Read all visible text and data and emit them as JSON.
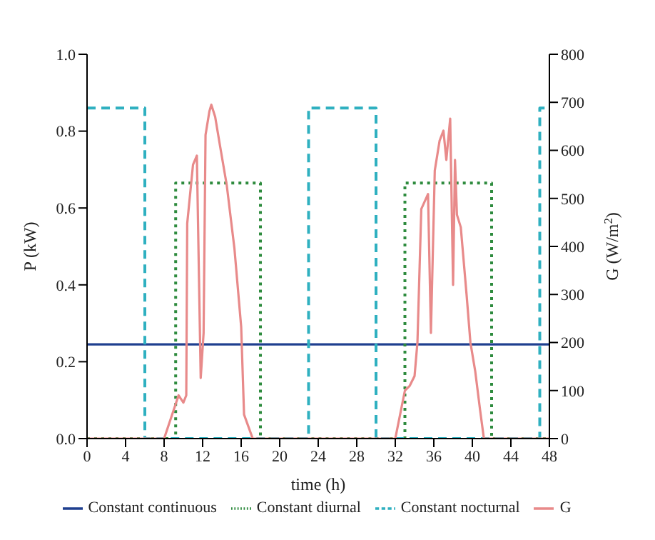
{
  "chart_data": {
    "type": "line",
    "xlabel": "time (h)",
    "ylabel": "P (kW)",
    "y2label": "G (W/m$^{2}$)",
    "xlim": [
      0,
      48
    ],
    "xticks": [
      0,
      4,
      8,
      12,
      16,
      20,
      24,
      28,
      32,
      36,
      40,
      44,
      48
    ],
    "ylim": [
      0,
      1.0
    ],
    "yticks": [
      {
        "value": 0,
        "label": "0.0"
      },
      {
        "value": 0.2,
        "label": "0.2"
      },
      {
        "value": 0.4,
        "label": "0.4"
      },
      {
        "value": 0.6,
        "label": "0.6"
      },
      {
        "value": 0.8,
        "label": "0.8"
      },
      {
        "value": 1.0,
        "label": "1.0"
      }
    ],
    "y2lim": [
      0,
      800
    ],
    "y2ticks": [
      0,
      100,
      200,
      300,
      400,
      500,
      600,
      700,
      800
    ],
    "grid": false,
    "legend": "bottom",
    "marker": "none",
    "series": [
      {
        "name": "Constant continuous",
        "color": "#1f3f8f",
        "line_style": "solid",
        "x": [
          0,
          48
        ],
        "values": [
          0.245,
          0.245
        ]
      },
      {
        "name": "Constant diurnal",
        "color": "#2e8b3e",
        "line_style": "dotted",
        "x": [
          0,
          9.2,
          9.2,
          18,
          18,
          33,
          33,
          42,
          42,
          48
        ],
        "values": [
          0,
          0,
          0.665,
          0.665,
          0,
          0,
          0.665,
          0.665,
          0,
          0
        ]
      },
      {
        "name": "Constant nocturnal",
        "color": "#2fb0c0",
        "line_style": "dashed",
        "x": [
          0,
          6,
          6,
          23,
          23,
          30,
          30,
          47,
          47,
          48
        ],
        "values": [
          0.86,
          0.86,
          0,
          0,
          0.86,
          0.86,
          0,
          0,
          0.86,
          0.86
        ]
      },
      {
        "name": "G",
        "color": "#e88a8a",
        "line_style": "solid",
        "axis": "y2",
        "x": [
          0,
          8,
          9,
          9.5,
          10,
          10.3,
          10.4,
          11,
          11.4,
          11.8,
          12.1,
          12.3,
          12.7,
          12.9,
          13.3,
          13.8,
          14.5,
          15.3,
          16,
          16.3,
          17.2,
          32,
          33,
          33.5,
          34,
          34.3,
          34.7,
          35.4,
          35.7,
          36.1,
          36.6,
          37,
          37.3,
          37.7,
          38,
          38.2,
          38.4,
          38.8,
          39.4,
          39.8,
          40.3,
          40.8,
          41.2,
          48
        ],
        "values": [
          0,
          0,
          60,
          90,
          75,
          90,
          448,
          570,
          589,
          126,
          220,
          632,
          681,
          695,
          670,
          610,
          528,
          396,
          233,
          50,
          0,
          0,
          100,
          110,
          130,
          200,
          478,
          509,
          220,
          558,
          620,
          641,
          580,
          666,
          320,
          580,
          466,
          440,
          300,
          200,
          140,
          60,
          0,
          0
        ]
      }
    ]
  }
}
